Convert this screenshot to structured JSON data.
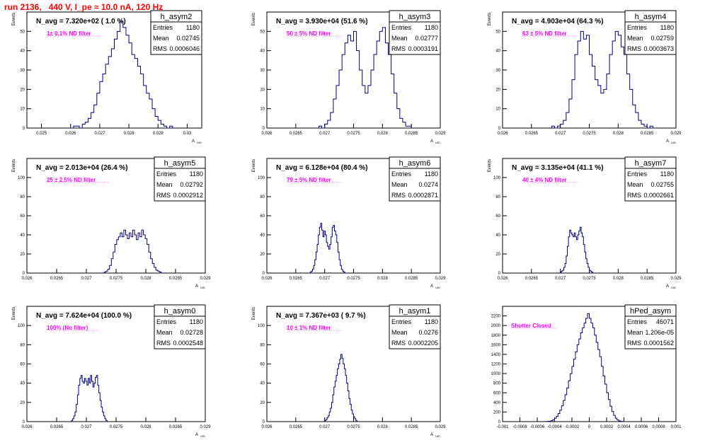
{
  "header": {
    "run_title": "run 2136,   440 V, I_pe ≈ 10.0 nA, 120 Hz"
  },
  "colors": {
    "histogram": "#000080",
    "annotation": "#ff00ff",
    "title": "#ff0000",
    "frame": "#000000"
  },
  "chart_data": [
    {
      "type": "bar",
      "name": "h_asym2",
      "ylabel": "Events",
      "xlabel": "A",
      "xlabel_sub": "UID",
      "xlim": [
        0.0245,
        0.0305
      ],
      "ylim": [
        0,
        60
      ],
      "xticks": [
        0.025,
        0.026,
        0.027,
        0.028,
        0.029,
        0.03
      ],
      "xtick_labels": [
        "0.025",
        "0.026",
        "0.027",
        "0.028",
        "0.029",
        "0.03"
      ],
      "yticks": [
        0,
        10,
        20,
        30,
        40,
        50
      ],
      "navg": "N_avg = 7.320e+02 ( 1.0 %)",
      "filter": "1± 0.1% ND filter",
      "stats": {
        "entries": "1180",
        "mean": "0.02745",
        "rms": "0.0006046"
      },
      "bins": {
        "x0": 0.026,
        "dx": 0.0001,
        "values": [
          0,
          1,
          1,
          0,
          2,
          3,
          5,
          8,
          12,
          18,
          24,
          28,
          33,
          37,
          41,
          46,
          50,
          55,
          52,
          48,
          44,
          38,
          36,
          32,
          28,
          22,
          18,
          15,
          10,
          6,
          4,
          2,
          1,
          0,
          1,
          0
        ]
      }
    },
    {
      "type": "bar",
      "name": "h_asym3",
      "ylabel": "Events",
      "xlabel": "A",
      "xlabel_sub": "UID",
      "xlim": [
        0.026,
        0.029
      ],
      "ylim": [
        0,
        60
      ],
      "xticks": [
        0.026,
        0.0265,
        0.027,
        0.0275,
        0.028,
        0.0285,
        0.029
      ],
      "xtick_labels": [
        "0.026",
        "0.0265",
        "0.027",
        "0.0275",
        "0.028",
        "0.0285",
        "0.029"
      ],
      "yticks": [
        0,
        10,
        20,
        30,
        40,
        50
      ],
      "navg": "N_avg = 3.930e+04 (51.6 %)",
      "filter": "50 ± 5% ND filter",
      "stats": {
        "entries": "1180",
        "mean": "0.02777",
        "rms": "0.0003191"
      },
      "bins": {
        "x0": 0.0269,
        "dx": 5e-05,
        "values": [
          1,
          0,
          2,
          4,
          8,
          15,
          22,
          30,
          38,
          44,
          48,
          45,
          50,
          40,
          30,
          22,
          18,
          22,
          30,
          38,
          45,
          50,
          52,
          44,
          38,
          28,
          18,
          10,
          5,
          3,
          1,
          1,
          0
        ]
      }
    },
    {
      "type": "bar",
      "name": "h_asym4",
      "ylabel": "Events",
      "xlabel": "A",
      "xlabel_sub": "UID",
      "xlim": [
        0.026,
        0.029
      ],
      "ylim": [
        0,
        60
      ],
      "xticks": [
        0.026,
        0.0265,
        0.027,
        0.0275,
        0.028,
        0.0285,
        0.029
      ],
      "xtick_labels": [
        "0.026",
        "0.0265",
        "0.027",
        "0.0275",
        "0.028",
        "0.0285",
        "0.029"
      ],
      "yticks": [
        0,
        10,
        20,
        30,
        40,
        50
      ],
      "navg": "N_avg = 4.903e+04 (64.3 %)",
      "filter": "63 ± 5% ND filter",
      "stats": {
        "entries": "1180",
        "mean": "0.02759",
        "rms": "0.0003673"
      },
      "bins": {
        "x0": 0.02685,
        "dx": 5e-05,
        "values": [
          1,
          0,
          1,
          2,
          4,
          8,
          15,
          25,
          38,
          45,
          50,
          46,
          48,
          38,
          32,
          25,
          22,
          18,
          20,
          28,
          38,
          45,
          50,
          48,
          42,
          38,
          28,
          20,
          12,
          8,
          4,
          2,
          1,
          0,
          1
        ]
      }
    },
    {
      "type": "bar",
      "name": "h_asym5",
      "ylabel": "Events",
      "xlabel": "A",
      "xlabel_sub": "UID",
      "xlim": [
        0.026,
        0.029
      ],
      "ylim": [
        0,
        120
      ],
      "xticks": [
        0.026,
        0.0265,
        0.027,
        0.0275,
        0.028,
        0.0285,
        0.029
      ],
      "xtick_labels": [
        "0.026",
        "0.0265",
        "0.027",
        "0.0275",
        "0.028",
        "0.0285",
        "0.029"
      ],
      "yticks": [
        0,
        20,
        40,
        60,
        80,
        100
      ],
      "navg": "N_avg = 2.013e+04 (26.4 %)",
      "filter": "25 ± 2.5% ND filter",
      "stats": {
        "entries": "1180",
        "mean": "0.02792",
        "rms": "0.0002912"
      },
      "bins": {
        "x0": 0.0273,
        "dx": 3e-05,
        "values": [
          1,
          2,
          4,
          8,
          15,
          22,
          30,
          35,
          38,
          42,
          38,
          45,
          40,
          36,
          42,
          38,
          45,
          40,
          35,
          42,
          38,
          45,
          40,
          36,
          30,
          22,
          15,
          10,
          6,
          3,
          2,
          1,
          0
        ]
      }
    },
    {
      "type": "bar",
      "name": "h_asym6",
      "ylabel": "Events",
      "xlabel": "A",
      "xlabel_sub": "UID",
      "xlim": [
        0.026,
        0.029
      ],
      "ylim": [
        0,
        120
      ],
      "xticks": [
        0.026,
        0.0265,
        0.027,
        0.0275,
        0.028,
        0.0285,
        0.029
      ],
      "xtick_labels": [
        "0.026",
        "0.0265",
        "0.027",
        "0.0275",
        "0.028",
        "0.0285",
        "0.029"
      ],
      "yticks": [
        0,
        20,
        40,
        60,
        80,
        100
      ],
      "navg": "N_avg = 6.128e+04 (80.4 %)",
      "filter": "79 ± 5% ND filter",
      "stats": {
        "entries": "1180",
        "mean": "0.0274",
        "rms": "0.0002871"
      },
      "bins": {
        "x0": 0.02675,
        "dx": 2e-05,
        "values": [
          1,
          2,
          4,
          8,
          14,
          22,
          30,
          40,
          48,
          52,
          45,
          38,
          44,
          40,
          32,
          28,
          25,
          30,
          38,
          48,
          50,
          44,
          40,
          32,
          22,
          14,
          8,
          4,
          2,
          1,
          0
        ]
      }
    },
    {
      "type": "bar",
      "name": "h_asym7",
      "ylabel": "Events",
      "xlabel": "A",
      "xlabel_sub": "UID",
      "xlim": [
        0.026,
        0.029
      ],
      "ylim": [
        0,
        120
      ],
      "xticks": [
        0.026,
        0.0265,
        0.027,
        0.0275,
        0.028,
        0.0285,
        0.029
      ],
      "xtick_labels": [
        "0.026",
        "0.0265",
        "0.027",
        "0.0275",
        "0.028",
        "0.0285",
        "0.029"
      ],
      "yticks": [
        0,
        20,
        40,
        60,
        80,
        100
      ],
      "navg": "N_avg = 3.135e+04 (41.1 %)",
      "filter": "40 ± 4% ND filter",
      "stats": {
        "entries": "1180",
        "mean": "0.02755",
        "rms": "0.0002661"
      },
      "bins": {
        "x0": 0.027,
        "dx": 2e-05,
        "values": [
          1,
          2,
          3,
          6,
          10,
          18,
          28,
          38,
          45,
          42,
          40,
          38,
          42,
          38,
          35,
          40,
          44,
          48,
          42,
          38,
          30,
          22,
          15,
          10,
          6,
          3,
          2,
          1
        ]
      }
    },
    {
      "type": "bar",
      "name": "h_asym0",
      "ylabel": "Events",
      "xlabel": "A",
      "xlabel_sub": "UID",
      "xlim": [
        0.026,
        0.029
      ],
      "ylim": [
        0,
        120
      ],
      "xticks": [
        0.026,
        0.0265,
        0.027,
        0.0275,
        0.028,
        0.0285,
        0.029
      ],
      "xtick_labels": [
        "0.026",
        "0.0265",
        "0.027",
        "0.0275",
        "0.028",
        "0.0285",
        "0.029"
      ],
      "yticks": [
        0,
        20,
        40,
        60,
        80,
        100
      ],
      "navg": "N_avg = 7.624e+04 (100.0 %)",
      "filter": "100% (No filter)",
      "stats": {
        "entries": "1180",
        "mean": "0.02728",
        "rms": "0.0002548"
      },
      "bins": {
        "x0": 0.02675,
        "dx": 2e-05,
        "values": [
          1,
          3,
          6,
          10,
          18,
          28,
          38,
          45,
          48,
          42,
          40,
          45,
          42,
          38,
          45,
          40,
          48,
          42,
          36,
          40,
          46,
          48,
          38,
          30,
          22,
          15,
          10,
          6,
          3,
          1,
          0
        ]
      }
    },
    {
      "type": "bar",
      "name": "h_asym1",
      "ylabel": "Events",
      "xlabel": "A",
      "xlabel_sub": "UID",
      "xlim": [
        0.026,
        0.029
      ],
      "ylim": [
        0,
        120
      ],
      "xticks": [
        0.026,
        0.0265,
        0.027,
        0.0275,
        0.028,
        0.0285,
        0.029
      ],
      "xtick_labels": [
        "0.026",
        "0.0265",
        "0.027",
        "0.0275",
        "0.028",
        "0.0285",
        "0.029"
      ],
      "yticks": [
        0,
        20,
        40,
        60,
        80,
        100
      ],
      "navg": "N_avg = 7.367e+03 ( 9.7 %)",
      "filter": "10 ± 1% ND filter",
      "stats": {
        "entries": "1180",
        "mean": "0.0276",
        "rms": "0.0002205"
      },
      "bins": {
        "x0": 0.027,
        "dx": 2e-05,
        "values": [
          1,
          2,
          4,
          6,
          10,
          14,
          20,
          28,
          36,
          42,
          48,
          55,
          60,
          65,
          70,
          66,
          60,
          55,
          48,
          40,
          32,
          24,
          18,
          12,
          8,
          5,
          3,
          1
        ]
      }
    },
    {
      "type": "bar",
      "name": "hPed_asym",
      "ylabel": "",
      "xlabel": "",
      "xlabel_sub": "",
      "xlim": [
        -0.001,
        0.001
      ],
      "ylim": [
        0,
        2400
      ],
      "xticks": [
        -0.001,
        -0.0008,
        -0.0006,
        -0.0004,
        -0.0002,
        0,
        0.0002,
        0.0004,
        0.0006,
        0.0008,
        0.001
      ],
      "xtick_labels": [
        "-0.001",
        "-0.0008",
        "-0.0006",
        "-0.0004",
        "-0.0002",
        "0",
        "0.0002",
        "0.0004",
        "0.0006",
        "0.0008",
        "0.001"
      ],
      "yticks": [
        0,
        200,
        400,
        600,
        800,
        1000,
        1200,
        1400,
        1600,
        1800,
        2000,
        2200
      ],
      "navg": "",
      "filter": "Shutter Closed",
      "stats": {
        "entries": "46071",
        "mean": "1.206e-05",
        "rms": "0.0001562"
      },
      "bins": {
        "x0": -0.0005,
        "dx": 2e-05,
        "values": [
          2,
          5,
          10,
          20,
          40,
          70,
          110,
          170,
          240,
          330,
          440,
          560,
          700,
          850,
          1000,
          1150,
          1300,
          1450,
          1600,
          1720,
          1850,
          1950,
          2050,
          2150,
          2250,
          2150,
          2050,
          1950,
          1800,
          1650,
          1500,
          1350,
          1150,
          950,
          780,
          600,
          460,
          320,
          210,
          130,
          70,
          35,
          15,
          6,
          2
        ]
      }
    }
  ]
}
